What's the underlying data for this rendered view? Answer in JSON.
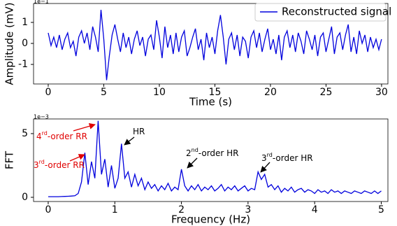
{
  "chart_data": [
    {
      "type": "line",
      "offset_text": "1e−1",
      "xlabel": "Time (s)",
      "ylabel": "Amplitude (mV)",
      "xlim": [
        -1.32,
        30.57
      ],
      "ylim": [
        -1.93,
        1.9
      ],
      "xticks": [
        0,
        5,
        10,
        15,
        20,
        25,
        30
      ],
      "yticks": [
        -1,
        0,
        1
      ],
      "legend": "upper right",
      "x": [
        0,
        0.25,
        0.5,
        0.75,
        1,
        1.25,
        1.5,
        1.75,
        2,
        2.25,
        2.5,
        2.75,
        3,
        3.25,
        3.5,
        3.75,
        4,
        4.25,
        4.5,
        4.75,
        5,
        5.25,
        5.5,
        5.75,
        6,
        6.25,
        6.5,
        6.75,
        7,
        7.25,
        7.5,
        7.75,
        8,
        8.25,
        8.5,
        8.75,
        9,
        9.25,
        9.5,
        9.75,
        10,
        10.25,
        10.5,
        10.75,
        11,
        11.25,
        11.5,
        11.75,
        12,
        12.25,
        12.5,
        12.75,
        13,
        13.25,
        13.5,
        13.75,
        14,
        14.25,
        14.5,
        14.75,
        15,
        15.25,
        15.5,
        15.75,
        16,
        16.25,
        16.5,
        16.75,
        17,
        17.25,
        17.5,
        17.75,
        18,
        18.25,
        18.5,
        18.75,
        19,
        19.25,
        19.5,
        19.75,
        20,
        20.25,
        20.5,
        20.75,
        21,
        21.25,
        21.5,
        21.75,
        22,
        22.25,
        22.5,
        22.75,
        23,
        23.25,
        23.5,
        23.75,
        24,
        24.25,
        24.5,
        24.75,
        25,
        25.25,
        25.5,
        25.75,
        26,
        26.25,
        26.5,
        26.75,
        27,
        27.25,
        27.5,
        27.75,
        28,
        28.25,
        28.5,
        28.75,
        29,
        29.25,
        29.5,
        29.75,
        30
      ],
      "series": [
        {
          "name": "Reconstructed signal",
          "color": "#0000dd",
          "values": [
            0.5,
            -0.1,
            0.3,
            -0.2,
            0.4,
            -0.3,
            0.2,
            0.5,
            -0.2,
            0.1,
            -0.6,
            0.3,
            0.6,
            0.0,
            0.5,
            -0.3,
            0.8,
            0.3,
            -0.4,
            1.6,
            0.2,
            -1.75,
            -0.6,
            0.4,
            0.9,
            0.2,
            -0.4,
            0.5,
            -0.2,
            0.3,
            -0.5,
            0.2,
            0.6,
            -0.1,
            0.3,
            -0.6,
            0.2,
            0.4,
            -0.3,
            1.1,
            0.3,
            -0.7,
            0.8,
            -0.2,
            0.4,
            -0.5,
            0.5,
            -0.4,
            0.3,
            0.6,
            -0.6,
            -0.2,
            0.3,
            0.7,
            -0.3,
            0.2,
            -0.8,
            0.5,
            -0.2,
            0.3,
            -0.5,
            0.6,
            1.35,
            0.3,
            -1.0,
            0.2,
            0.5,
            -0.3,
            0.4,
            -0.6,
            0.3,
            0.1,
            -0.7,
            0.3,
            0.6,
            -0.2,
            0.5,
            -0.4,
            0.2,
            0.7,
            -0.3,
            0.2,
            -0.5,
            0.4,
            -0.8,
            0.3,
            0.6,
            -0.2,
            0.4,
            -0.4,
            0.5,
            0.1,
            -0.5,
            0.6,
            0.2,
            -0.3,
            0.4,
            -0.6,
            0.3,
            0.5,
            -0.4,
            0.2,
            0.8,
            -0.5,
            0.3,
            0.5,
            -0.3,
            0.4,
            0.9,
            -0.4,
            0.3,
            -0.5,
            0.6,
            0.0,
            0.4,
            -0.4,
            0.3,
            -0.2,
            0.2,
            -0.3,
            0.2
          ]
        }
      ]
    },
    {
      "type": "line",
      "offset_text": "1e−3",
      "xlabel": "Frequency (Hz)",
      "ylabel": "FFT",
      "xlim": [
        -0.22,
        5.1
      ],
      "ylim": [
        -0.33,
        6.15
      ],
      "xticks": [
        0,
        1,
        2,
        3,
        4,
        5
      ],
      "yticks": [
        0,
        5
      ],
      "x": [
        0,
        0.05,
        0.1,
        0.15,
        0.2,
        0.25,
        0.3,
        0.35,
        0.4,
        0.45,
        0.5,
        0.55,
        0.6,
        0.65,
        0.7,
        0.75,
        0.8,
        0.85,
        0.9,
        0.95,
        1.0,
        1.05,
        1.1,
        1.15,
        1.2,
        1.25,
        1.3,
        1.35,
        1.4,
        1.45,
        1.5,
        1.55,
        1.6,
        1.65,
        1.7,
        1.75,
        1.8,
        1.85,
        1.9,
        1.95,
        2.0,
        2.05,
        2.1,
        2.15,
        2.2,
        2.25,
        2.3,
        2.35,
        2.4,
        2.45,
        2.5,
        2.55,
        2.6,
        2.65,
        2.7,
        2.75,
        2.8,
        2.85,
        2.9,
        2.95,
        3.0,
        3.05,
        3.1,
        3.15,
        3.2,
        3.25,
        3.3,
        3.35,
        3.4,
        3.45,
        3.5,
        3.55,
        3.6,
        3.65,
        3.7,
        3.75,
        3.8,
        3.85,
        3.9,
        3.95,
        4.0,
        4.05,
        4.1,
        4.15,
        4.2,
        4.25,
        4.3,
        4.35,
        4.4,
        4.45,
        4.5,
        4.55,
        4.6,
        4.65,
        4.7,
        4.75,
        4.8,
        4.85,
        4.9,
        4.95,
        5.0
      ],
      "series": [
        {
          "color": "#0000dd",
          "values": [
            0.05,
            0.05,
            0.05,
            0.05,
            0.06,
            0.07,
            0.08,
            0.1,
            0.12,
            0.3,
            1.2,
            3.5,
            1.0,
            2.8,
            1.5,
            6.0,
            1.8,
            3.0,
            0.8,
            2.5,
            0.7,
            1.5,
            4.2,
            1.5,
            2.0,
            0.8,
            1.8,
            0.9,
            1.5,
            0.6,
            1.2,
            0.7,
            1.0,
            0.5,
            0.9,
            0.6,
            1.1,
            0.5,
            0.8,
            0.6,
            2.2,
            0.9,
            0.5,
            0.9,
            0.6,
            1.0,
            0.5,
            0.8,
            0.6,
            0.9,
            0.5,
            0.7,
            1.0,
            0.5,
            0.8,
            0.6,
            0.9,
            0.5,
            0.7,
            0.9,
            0.5,
            0.7,
            0.6,
            2.0,
            1.4,
            1.8,
            0.8,
            1.0,
            0.6,
            0.9,
            0.4,
            0.7,
            0.5,
            0.8,
            0.4,
            0.6,
            0.7,
            0.4,
            0.6,
            0.5,
            0.3,
            0.6,
            0.4,
            0.5,
            0.3,
            0.6,
            0.4,
            0.5,
            0.3,
            0.5,
            0.4,
            0.3,
            0.5,
            0.4,
            0.3,
            0.5,
            0.4,
            0.3,
            0.5,
            0.3,
            0.5
          ]
        }
      ],
      "annotations": [
        {
          "parts": [
            "4",
            "rd",
            "-order RR"
          ],
          "color": "#e00000"
        },
        {
          "parts": [
            "3",
            "rd",
            "-order RR"
          ],
          "color": "#e00000"
        },
        {
          "parts": [
            "HR"
          ],
          "color": "#000000"
        },
        {
          "parts": [
            "2",
            "nd",
            "-order HR"
          ],
          "color": "#000000"
        },
        {
          "parts": [
            "3",
            "rd",
            "-order HR"
          ],
          "color": "#000000"
        }
      ]
    }
  ]
}
